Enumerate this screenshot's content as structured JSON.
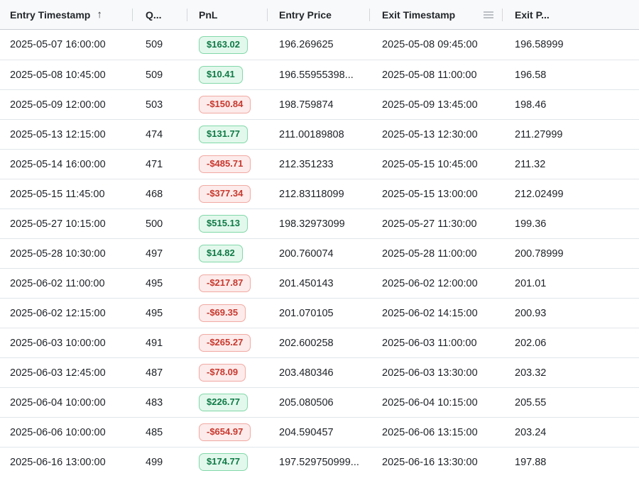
{
  "icons": {
    "sort_asc": "↑",
    "column_menu": "menu-lines"
  },
  "colors": {
    "header_bg": "#f8f9fa",
    "row_divider": "#e1e6ea",
    "pnl_positive_bg": "#e3f8ec",
    "pnl_positive_border": "#82d8a9",
    "pnl_positive_text": "#0e7a46",
    "pnl_negative_bg": "#fcebea",
    "pnl_negative_border": "#f1a9a3",
    "pnl_negative_text": "#c8382e"
  },
  "table": {
    "columns": [
      {
        "label": "Entry Timestamp",
        "sorted": "ascending"
      },
      {
        "label": "Q..."
      },
      {
        "label": "PnL"
      },
      {
        "label": "Entry Price"
      },
      {
        "label": "Exit Timestamp",
        "has_menu_icon": true
      },
      {
        "label": "Exit P..."
      }
    ],
    "rows": [
      {
        "entry_ts": "2025-05-07 16:00:00",
        "qty": "509",
        "pnl": "$163.02",
        "entry_price": "196.269625",
        "exit_ts": "2025-05-08 09:45:00",
        "exit_price": "196.58999"
      },
      {
        "entry_ts": "2025-05-08 10:45:00",
        "qty": "509",
        "pnl": "$10.41",
        "entry_price": "196.55955398...",
        "exit_ts": "2025-05-08 11:00:00",
        "exit_price": "196.58"
      },
      {
        "entry_ts": "2025-05-09 12:00:00",
        "qty": "503",
        "pnl": "-$150.84",
        "entry_price": "198.759874",
        "exit_ts": "2025-05-09 13:45:00",
        "exit_price": "198.46"
      },
      {
        "entry_ts": "2025-05-13 12:15:00",
        "qty": "474",
        "pnl": "$131.77",
        "entry_price": "211.00189808",
        "exit_ts": "2025-05-13 12:30:00",
        "exit_price": "211.27999"
      },
      {
        "entry_ts": "2025-05-14 16:00:00",
        "qty": "471",
        "pnl": "-$485.71",
        "entry_price": "212.351233",
        "exit_ts": "2025-05-15 10:45:00",
        "exit_price": "211.32"
      },
      {
        "entry_ts": "2025-05-15 11:45:00",
        "qty": "468",
        "pnl": "-$377.34",
        "entry_price": "212.83118099",
        "exit_ts": "2025-05-15 13:00:00",
        "exit_price": "212.02499"
      },
      {
        "entry_ts": "2025-05-27 10:15:00",
        "qty": "500",
        "pnl": "$515.13",
        "entry_price": "198.32973099",
        "exit_ts": "2025-05-27 11:30:00",
        "exit_price": "199.36"
      },
      {
        "entry_ts": "2025-05-28 10:30:00",
        "qty": "497",
        "pnl": "$14.82",
        "entry_price": "200.760074",
        "exit_ts": "2025-05-28 11:00:00",
        "exit_price": "200.78999"
      },
      {
        "entry_ts": "2025-06-02 11:00:00",
        "qty": "495",
        "pnl": "-$217.87",
        "entry_price": "201.450143",
        "exit_ts": "2025-06-02 12:00:00",
        "exit_price": "201.01"
      },
      {
        "entry_ts": "2025-06-02 12:15:00",
        "qty": "495",
        "pnl": "-$69.35",
        "entry_price": "201.070105",
        "exit_ts": "2025-06-02 14:15:00",
        "exit_price": "200.93"
      },
      {
        "entry_ts": "2025-06-03 10:00:00",
        "qty": "491",
        "pnl": "-$265.27",
        "entry_price": "202.600258",
        "exit_ts": "2025-06-03 11:00:00",
        "exit_price": "202.06"
      },
      {
        "entry_ts": "2025-06-03 12:45:00",
        "qty": "487",
        "pnl": "-$78.09",
        "entry_price": "203.480346",
        "exit_ts": "2025-06-03 13:30:00",
        "exit_price": "203.32"
      },
      {
        "entry_ts": "2025-06-04 10:00:00",
        "qty": "483",
        "pnl": "$226.77",
        "entry_price": "205.080506",
        "exit_ts": "2025-06-04 10:15:00",
        "exit_price": "205.55"
      },
      {
        "entry_ts": "2025-06-06 10:00:00",
        "qty": "485",
        "pnl": "-$654.97",
        "entry_price": "204.590457",
        "exit_ts": "2025-06-06 13:15:00",
        "exit_price": "203.24"
      },
      {
        "entry_ts": "2025-06-16 13:00:00",
        "qty": "499",
        "pnl": "$174.77",
        "entry_price": "197.529750999...",
        "exit_ts": "2025-06-16 13:30:00",
        "exit_price": "197.88"
      }
    ]
  }
}
